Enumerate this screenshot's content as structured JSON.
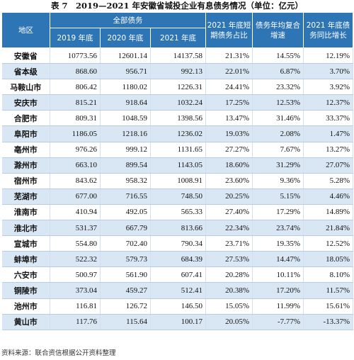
{
  "title": "表 7　2019—2021 年安徽省城投企业有息债务情况（单位：亿元）",
  "table": {
    "headers": {
      "region": "地区",
      "group": "全部债务",
      "y2019": "2019 年底",
      "y2020": "2020 年底",
      "y2021": "2021 年底",
      "short": "2021 年底短期债务占比",
      "cagr": "债务年均复合增速",
      "yoy": "2021 年底债务同比增长"
    },
    "rows": [
      {
        "region": "安徽省",
        "y2019": "10773.56",
        "y2020": "12601.14",
        "y2021": "14137.58",
        "short": "21.31%",
        "cagr": "14.55%",
        "yoy": "12.19%"
      },
      {
        "region": "省本级",
        "y2019": "868.60",
        "y2020": "956.71",
        "y2021": "992.13",
        "short": "22.01%",
        "cagr": "6.87%",
        "yoy": "3.70%"
      },
      {
        "region": "马鞍山市",
        "y2019": "806.42",
        "y2020": "1180.02",
        "y2021": "1226.31",
        "short": "24.41%",
        "cagr": "23.32%",
        "yoy": "3.92%"
      },
      {
        "region": "安庆市",
        "y2019": "815.21",
        "y2020": "918.64",
        "y2021": "1032.24",
        "short": "17.25%",
        "cagr": "12.53%",
        "yoy": "12.37%"
      },
      {
        "region": "合肥市",
        "y2019": "809.31",
        "y2020": "1048.59",
        "y2021": "1398.56",
        "short": "13.47%",
        "cagr": "31.46%",
        "yoy": "33.37%"
      },
      {
        "region": "阜阳市",
        "y2019": "1186.05",
        "y2020": "1218.16",
        "y2021": "1236.02",
        "short": "19.03%",
        "cagr": "2.08%",
        "yoy": "1.47%"
      },
      {
        "region": "亳州市",
        "y2019": "976.26",
        "y2020": "999.12",
        "y2021": "1131.65",
        "short": "27.27%",
        "cagr": "7.67%",
        "yoy": "13.27%"
      },
      {
        "region": "滁州市",
        "y2019": "663.10",
        "y2020": "899.54",
        "y2021": "1143.05",
        "short": "18.60%",
        "cagr": "31.29%",
        "yoy": "27.07%"
      },
      {
        "region": "宿州市",
        "y2019": "843.62",
        "y2020": "958.32",
        "y2021": "1008.91",
        "short": "23.60%",
        "cagr": "9.36%",
        "yoy": "5.28%"
      },
      {
        "region": "芜湖市",
        "y2019": "677.00",
        "y2020": "716.55",
        "y2021": "748.50",
        "short": "20.25%",
        "cagr": "5.15%",
        "yoy": "4.46%"
      },
      {
        "region": "淮南市",
        "y2019": "410.94",
        "y2020": "492.05",
        "y2021": "565.33",
        "short": "27.40%",
        "cagr": "17.29%",
        "yoy": "14.89%"
      },
      {
        "region": "淮北市",
        "y2019": "531.37",
        "y2020": "667.79",
        "y2021": "813.66",
        "short": "22.34%",
        "cagr": "23.74%",
        "yoy": "21.84%"
      },
      {
        "region": "宣城市",
        "y2019": "554.80",
        "y2020": "702.40",
        "y2021": "790.34",
        "short": "23.71%",
        "cagr": "19.35%",
        "yoy": "12.52%"
      },
      {
        "region": "蚌埠市",
        "y2019": "522.32",
        "y2020": "579.73",
        "y2021": "684.39",
        "short": "27.53%",
        "cagr": "14.47%",
        "yoy": "18.05%"
      },
      {
        "region": "六安市",
        "y2019": "500.97",
        "y2020": "561.90",
        "y2021": "607.41",
        "short": "20.28%",
        "cagr": "10.11%",
        "yoy": "8.10%"
      },
      {
        "region": "铜陵市",
        "y2019": "373.04",
        "y2020": "459.27",
        "y2021": "512.41",
        "short": "20.38%",
        "cagr": "17.20%",
        "yoy": "11.57%"
      },
      {
        "region": "池州市",
        "y2019": "116.81",
        "y2020": "126.72",
        "y2021": "146.50",
        "short": "15.05%",
        "cagr": "11.99%",
        "yoy": "15.61%"
      },
      {
        "region": "黄山市",
        "y2019": "117.76",
        "y2020": "115.64",
        "y2021": "100.17",
        "short": "20.05%",
        "cagr": "-7.77%",
        "yoy": "-13.37%"
      }
    ]
  },
  "source": "资料来源：联合资信根据公开资料整理",
  "colors": {
    "header_bg": "#2e75b6",
    "alt_row_bg": "#d9e7f5"
  }
}
